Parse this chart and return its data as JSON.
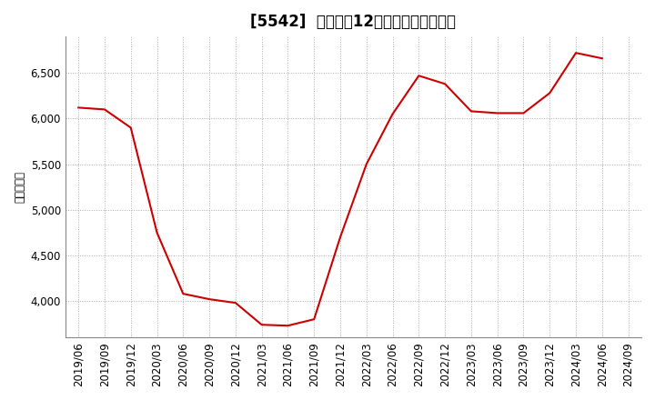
{
  "title": "[5542]  売上高の12か月移動合計の推移",
  "ylabel": "（百万円）",
  "line_color": "#cc0000",
  "bg_color": "#ffffff",
  "grid_color": "#aaaaaa",
  "dates": [
    "2019/06",
    "2019/09",
    "2019/12",
    "2020/03",
    "2020/06",
    "2020/09",
    "2020/12",
    "2021/03",
    "2021/06",
    "2021/09",
    "2021/12",
    "2022/03",
    "2022/06",
    "2022/09",
    "2022/12",
    "2023/03",
    "2023/06",
    "2023/09",
    "2023/12",
    "2024/03",
    "2024/06",
    "2024/09"
  ],
  "values": [
    6120,
    6100,
    5900,
    4750,
    4080,
    4020,
    3980,
    3740,
    3730,
    3800,
    4700,
    5500,
    6050,
    6470,
    6380,
    6080,
    6060,
    6060,
    6280,
    6720,
    6660,
    null
  ],
  "ylim": [
    3600,
    6900
  ],
  "yticks": [
    4000,
    4500,
    5000,
    5500,
    6000,
    6500
  ],
  "tick_label_fontsize": 8.5,
  "title_fontsize": 12,
  "ylabel_fontsize": 8.5
}
